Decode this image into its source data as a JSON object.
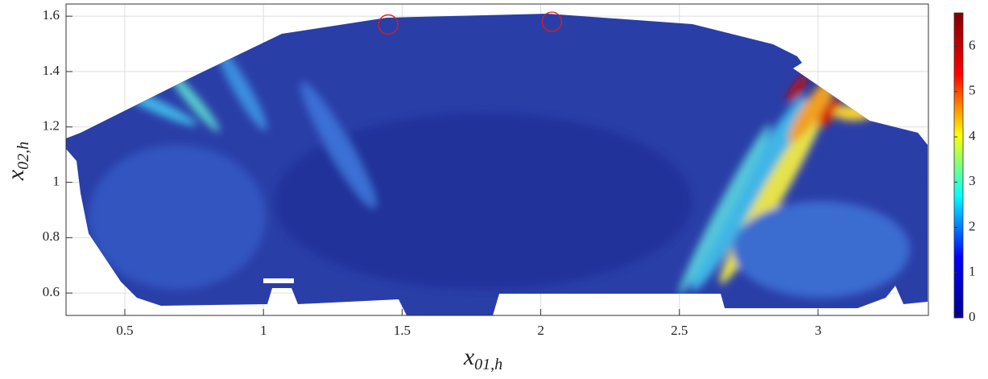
{
  "chart_data": {
    "type": "field",
    "xlabel": {
      "base": "x",
      "sub": "01,h"
    },
    "ylabel": {
      "base": "x",
      "sub": "02,h"
    },
    "xlim": [
      0.288,
      3.398
    ],
    "xticks": [
      0.5,
      1,
      1.5,
      2,
      2.5,
      3
    ],
    "ylim": [
      0.519,
      1.644
    ],
    "yticks": [
      0.6,
      0.8,
      1,
      1.2,
      1.4,
      1.6
    ],
    "grid": true,
    "colormap": "jet",
    "clim": [
      0,
      6.74
    ],
    "cticks": [
      0,
      1,
      2,
      3,
      4,
      5,
      6
    ],
    "markers": {
      "x": [
        1.45,
        2.04
      ],
      "y": [
        1.57,
        1.58
      ],
      "color": "#e41a1c"
    }
  }
}
